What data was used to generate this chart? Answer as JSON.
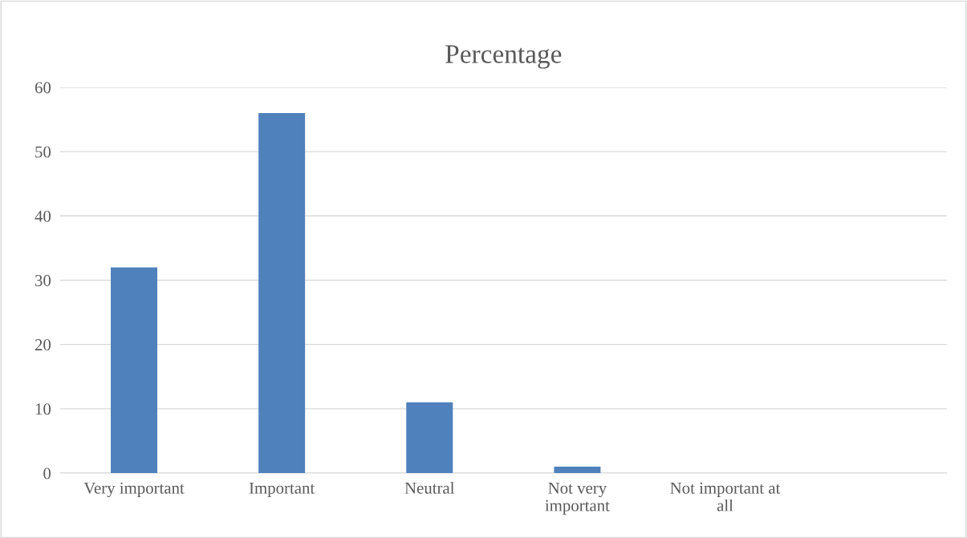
{
  "chart_data": {
    "type": "bar",
    "title": "Percentage",
    "categories": [
      "Very important",
      "Important",
      "Neutral",
      "Not very\nimportant",
      "Not important at\nall",
      null
    ],
    "values": [
      32,
      56,
      11,
      1,
      0,
      null
    ],
    "color": "#4f81bd",
    "ylim": [
      0,
      60
    ],
    "yticks": [
      0,
      10,
      20,
      30,
      40,
      50,
      60
    ],
    "grid": "y",
    "legend": false
  }
}
